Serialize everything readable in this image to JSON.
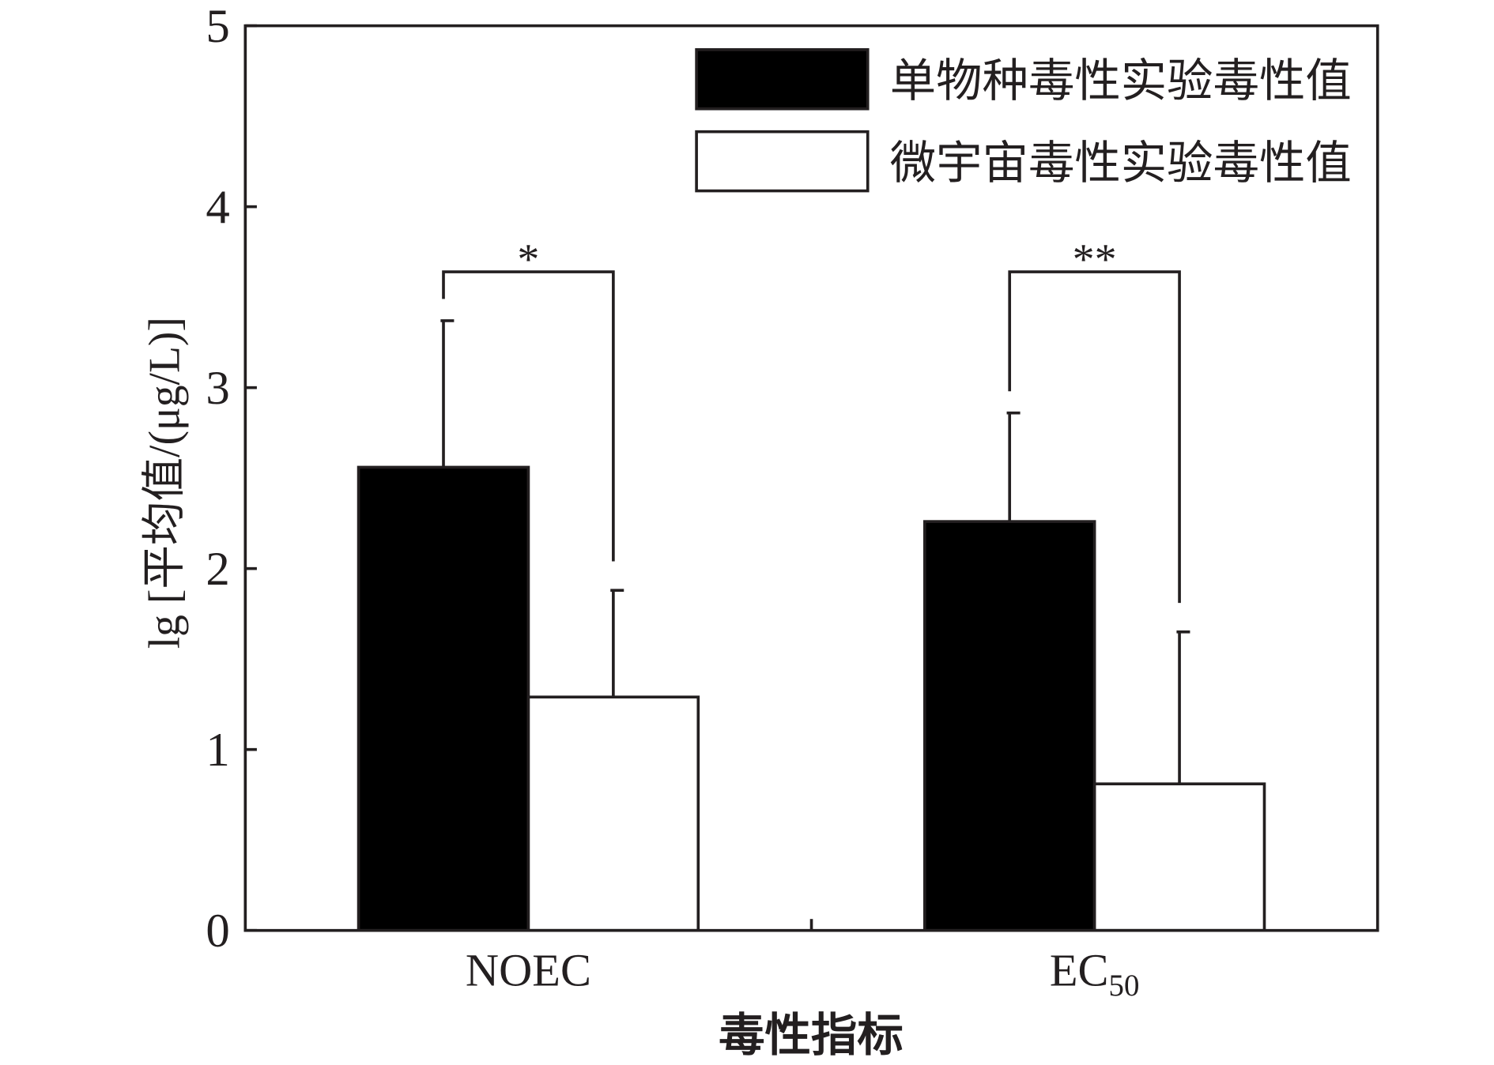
{
  "chart_data": {
    "type": "bar",
    "categories": [
      "NOEC",
      "EC50"
    ],
    "series": [
      {
        "name": "单物种毒性实验毒性值",
        "values": [
          2.56,
          2.26
        ],
        "error": [
          0.81,
          0.6
        ],
        "color": "#000000"
      },
      {
        "name": "微宇宙毒性实验毒性值",
        "values": [
          1.29,
          0.81
        ],
        "error": [
          0.59,
          0.84
        ],
        "color": "#ffffff"
      }
    ],
    "xlabel": "毒性指标",
    "ylabel": "lg [平均值/(μg/L)]",
    "ylim": [
      0,
      5
    ],
    "yticks": [
      0,
      1,
      2,
      3,
      4,
      5
    ],
    "annotations": [
      {
        "category": "NOEC",
        "label": "*"
      },
      {
        "category": "EC50",
        "label": "**"
      }
    ],
    "legend_position": "top-right",
    "grid": false
  }
}
